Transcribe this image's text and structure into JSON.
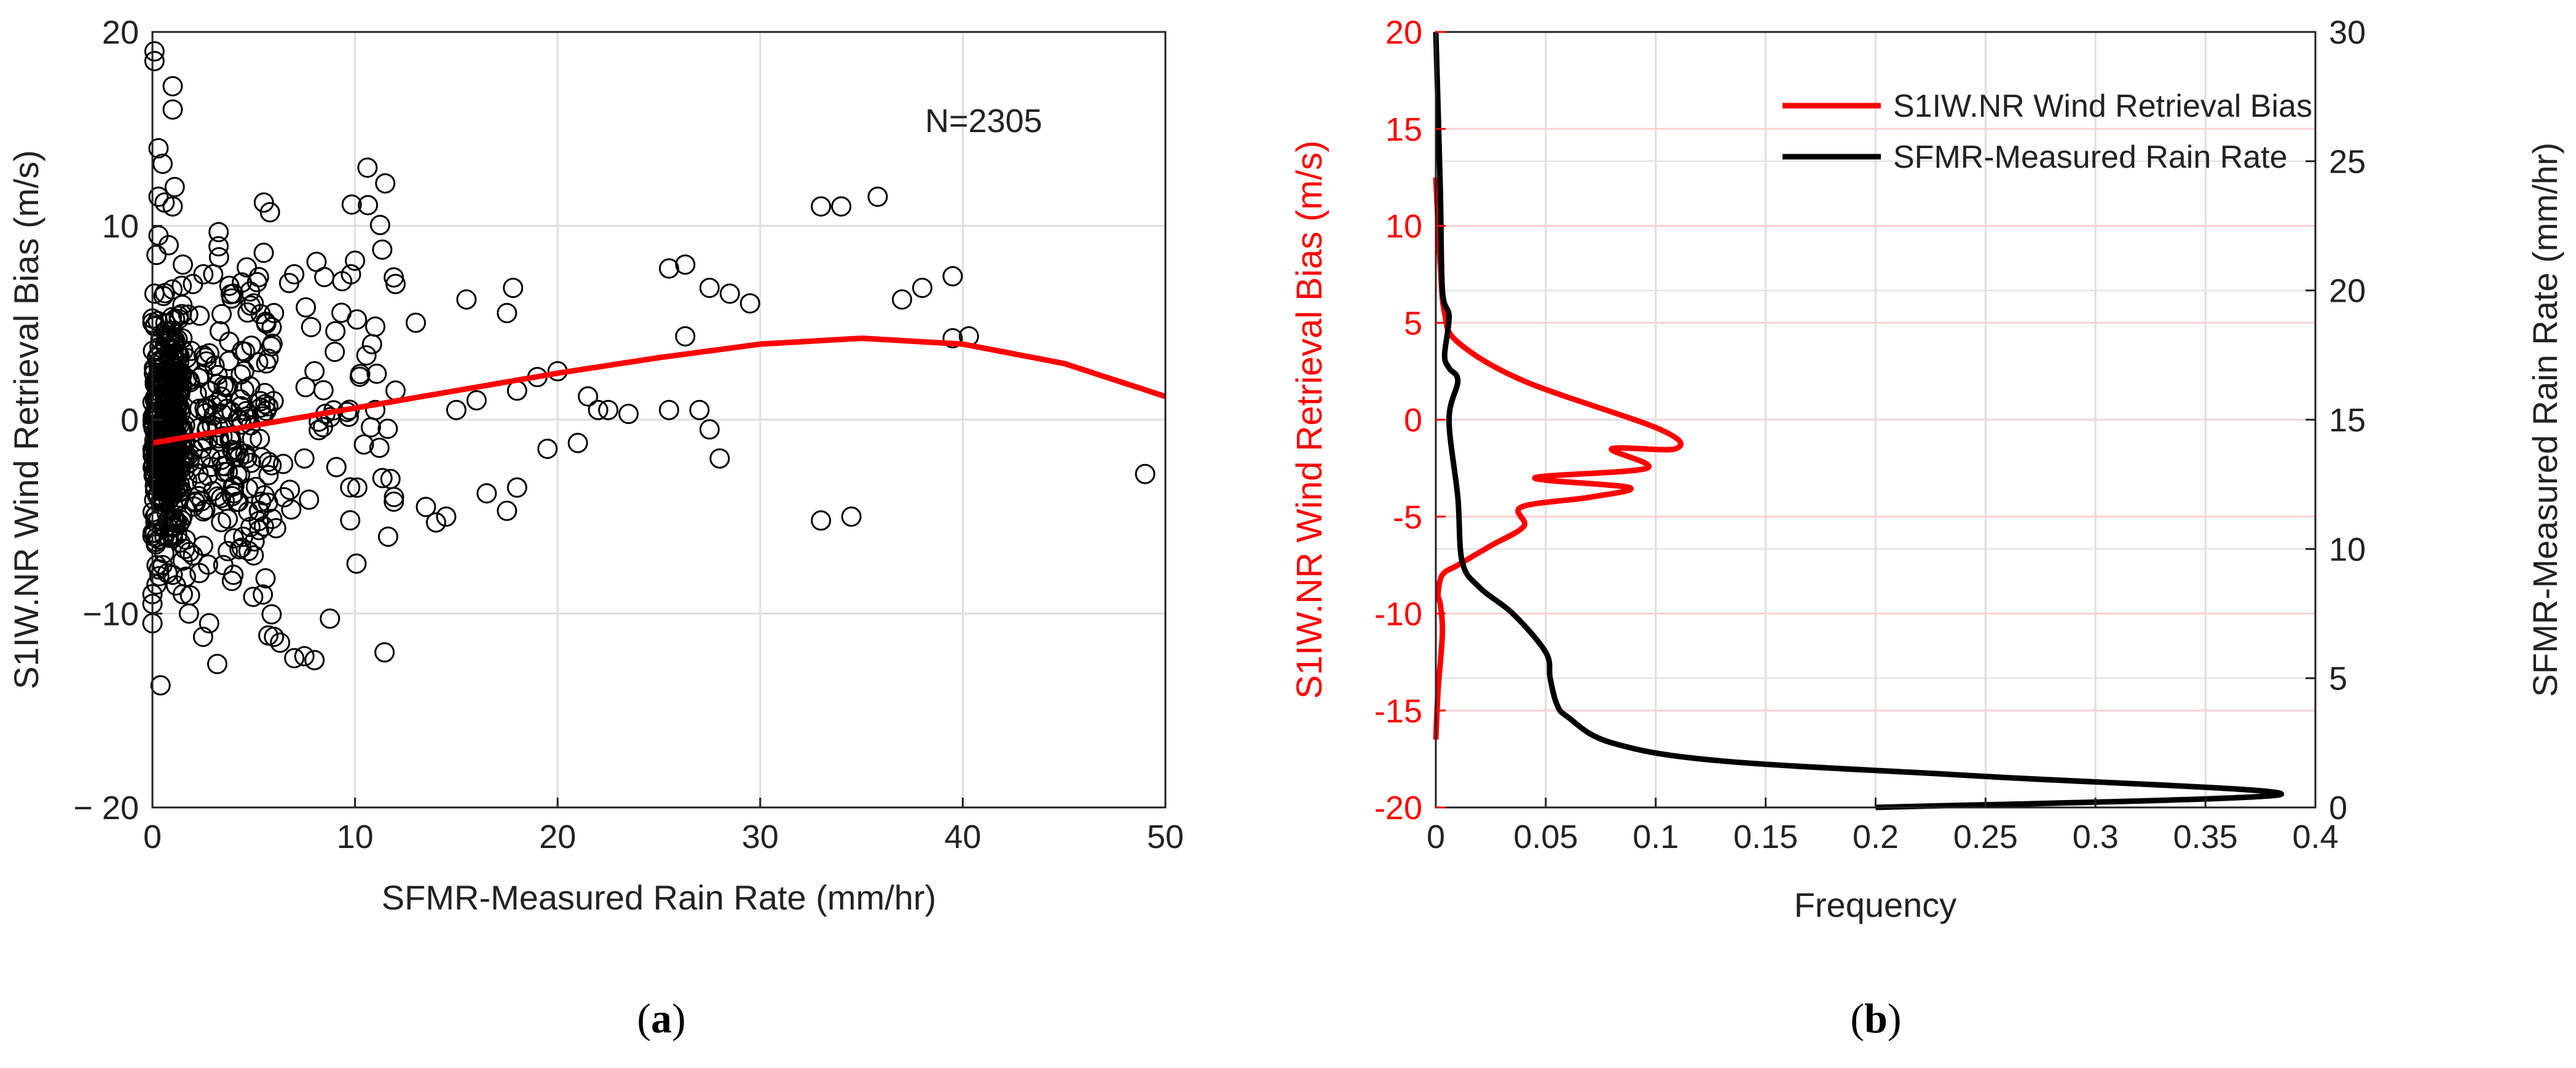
{
  "colors": {
    "red": "#ff0000",
    "black": "#000000",
    "grid": "#dedede",
    "redgrid": "#ffd0d0"
  },
  "panels": {
    "a": {
      "caption_letter": "a",
      "annotation": "N=2305"
    },
    "b": {
      "caption_letter": "b"
    }
  },
  "chart_data": [
    {
      "id": "a",
      "type": "scatter",
      "xlabel": "SFMR-Measured Rain Rate (mm/hr)",
      "ylabel": "S1IW.NR Wind Retrieval Bias (m/s)",
      "xlim": [
        0,
        50
      ],
      "ylim": [
        -20,
        20
      ],
      "xticks": [
        0,
        10,
        20,
        30,
        40,
        50
      ],
      "xtick_labels": [
        "0",
        "10",
        "20",
        "30",
        "40",
        "50"
      ],
      "yticks": [
        -20,
        -10,
        0,
        10,
        20
      ],
      "ytick_labels": [
        "− 20",
        "−10",
        "0",
        "10",
        "20"
      ],
      "grid": true,
      "annotation": "N=2305",
      "point_count": 2305,
      "points_shown": [
        [
          0.1,
          19.0
        ],
        [
          0.1,
          18.5
        ],
        [
          1.0,
          17.2
        ],
        [
          1.0,
          16.0
        ],
        [
          0.3,
          14.0
        ],
        [
          0.5,
          13.2
        ],
        [
          1.1,
          12.0
        ],
        [
          0.3,
          11.5
        ],
        [
          0.6,
          11.2
        ],
        [
          1.0,
          11.0
        ],
        [
          0.4,
          -13.7
        ],
        [
          1.8,
          -10.0
        ],
        [
          2.5,
          -11.2
        ],
        [
          3.2,
          -12.6
        ],
        [
          2.8,
          -10.5
        ],
        [
          6.0,
          -11.2
        ],
        [
          6.3,
          -11.5
        ],
        [
          7.0,
          -12.3
        ],
        [
          7.5,
          -12.2
        ],
        [
          8.0,
          -12.4
        ],
        [
          5.5,
          11.2
        ],
        [
          5.8,
          10.7
        ],
        [
          10.0,
          8.2
        ],
        [
          9.8,
          7.5
        ],
        [
          12.0,
          7.0
        ],
        [
          15.5,
          6.2
        ],
        [
          17.5,
          5.5
        ],
        [
          17.8,
          6.8
        ],
        [
          13.0,
          5.0
        ],
        [
          11.0,
          4.8
        ],
        [
          25.5,
          7.8
        ],
        [
          26.3,
          8.0
        ],
        [
          27.5,
          6.8
        ],
        [
          28.5,
          6.5
        ],
        [
          29.5,
          6.0
        ],
        [
          26.3,
          4.3
        ],
        [
          25.5,
          0.5
        ],
        [
          27.0,
          0.5
        ],
        [
          27.5,
          -0.5
        ],
        [
          28.0,
          -2.0
        ],
        [
          33.0,
          11.0
        ],
        [
          34.0,
          11.0
        ],
        [
          35.8,
          11.5
        ],
        [
          37.0,
          6.2
        ],
        [
          38.0,
          6.8
        ],
        [
          39.5,
          7.4
        ],
        [
          39.5,
          4.2
        ],
        [
          40.3,
          4.3
        ],
        [
          33.0,
          -5.2
        ],
        [
          34.5,
          -5.0
        ],
        [
          49.0,
          -2.8
        ],
        [
          21.0,
          -1.2
        ],
        [
          22.0,
          0.5
        ],
        [
          19.5,
          -1.5
        ],
        [
          18.0,
          -3.5
        ],
        [
          16.5,
          -3.8
        ],
        [
          14.0,
          -5.3
        ],
        [
          14.5,
          -5.0
        ],
        [
          13.5,
          -4.5
        ],
        [
          17.5,
          -4.7
        ],
        [
          20.0,
          2.5
        ],
        [
          21.5,
          1.2
        ],
        [
          19.0,
          2.2
        ],
        [
          22.5,
          0.5
        ],
        [
          23.5,
          0.3
        ],
        [
          18.0,
          1.5
        ],
        [
          16.0,
          1.0
        ],
        [
          15.0,
          0.5
        ],
        [
          12.0,
          1.5
        ],
        [
          11.0,
          0.5
        ],
        [
          9.0,
          3.5
        ],
        [
          8.0,
          2.5
        ],
        [
          7.5,
          -2.0
        ],
        [
          6.5,
          -4.0
        ],
        [
          5.5,
          -5.5
        ],
        [
          5.0,
          -7.0
        ],
        [
          4.0,
          -8.0
        ],
        [
          3.5,
          -7.5
        ],
        [
          2.5,
          -6.5
        ],
        [
          2.0,
          -7.0
        ],
        [
          0.0,
          -9.5
        ],
        [
          0.0,
          -9.0
        ],
        [
          0.0,
          -10.5
        ],
        [
          0.2,
          -8.5
        ],
        [
          1.0,
          -8.0
        ],
        [
          1.5,
          -9.0
        ],
        [
          0.5,
          -7.5
        ],
        [
          0.0,
          -6.0
        ],
        [
          0.0,
          5.0
        ],
        [
          0.1,
          6.5
        ],
        [
          0.2,
          8.5
        ],
        [
          0.3,
          9.5
        ],
        [
          0.8,
          9.0
        ],
        [
          1.5,
          8.0
        ],
        [
          2.0,
          7.0
        ],
        [
          3.0,
          7.5
        ],
        [
          4.0,
          6.5
        ],
        [
          5.0,
          6.0
        ],
        [
          6.0,
          5.5
        ],
        [
          7.0,
          7.5
        ]
      ],
      "fit_curve": {
        "color": "#ff0000",
        "x": [
          0,
          5,
          10,
          15,
          20,
          25,
          30,
          35,
          40,
          45,
          50
        ],
        "y": [
          -1.2,
          -0.3,
          0.6,
          1.5,
          2.4,
          3.2,
          3.9,
          4.2,
          3.9,
          2.9,
          1.2
        ]
      }
    },
    {
      "id": "b",
      "type": "line",
      "xlabel": "Frequency",
      "ylabel_left": "S1IW.NR Wind Retrieval Bias (m/s)",
      "ylabel_right": "SFMR-Measured Rain Rate (mm/hr)",
      "xlim": [
        0,
        0.4
      ],
      "ylim_left": [
        -20,
        20
      ],
      "ylim_right": [
        0,
        30
      ],
      "xticks": [
        0,
        0.05,
        0.1,
        0.15,
        0.2,
        0.25,
        0.3,
        0.35,
        0.4
      ],
      "xtick_labels": [
        "0",
        "0.05",
        "0.1",
        "0.15",
        "0.2",
        "0.25",
        "0.3",
        "0.35",
        "0.4"
      ],
      "yticks_left": [
        -20,
        -15,
        -10,
        -5,
        0,
        5,
        10,
        15,
        20
      ],
      "ytick_labels_left": [
        "-20",
        "-15",
        "-10",
        "-5",
        "0",
        "5",
        "10",
        "15",
        "20"
      ],
      "yticks_right": [
        0,
        5,
        10,
        15,
        20,
        25,
        30
      ],
      "ytick_labels_right": [
        "0",
        "5",
        "10",
        "15",
        "20",
        "25",
        "30"
      ],
      "grid": true,
      "legend_position": "top-right",
      "series": [
        {
          "name": "S1IW.NR Wind Retrieval Bias",
          "color": "#ff0000",
          "axis": "left",
          "freq": [
            0.0,
            0.001,
            0.003,
            0.002,
            0.001,
            0.003,
            0.01,
            0.025,
            0.04,
            0.039,
            0.045,
            0.08,
            0.102,
            0.109,
            0.096,
            0.088,
            0.07,
            0.04,
            0.01,
            0.004,
            0.002,
            0.0
          ],
          "value": [
            -16.5,
            -14.0,
            -11.0,
            -9.5,
            -9.0,
            -8.0,
            -7.5,
            -6.5,
            -5.5,
            -4.5,
            -3.0,
            -1.5,
            -0.5,
            -1.5,
            -2.5,
            -3.5,
            -4.0,
            2.0,
            4.0,
            5.5,
            8.0,
            12.5
          ]
        },
        {
          "name": "SFMR-Measured Rain Rate",
          "color": "#000000",
          "axis": "right",
          "freq": [
            0.0,
            0.002,
            0.003,
            0.006,
            0.004,
            0.006,
            0.01,
            0.006,
            0.01,
            0.012,
            0.02,
            0.035,
            0.05,
            0.052,
            0.055,
            0.06,
            0.08,
            0.13,
            0.25,
            0.384,
            0.2
          ],
          "value": [
            30.0,
            24.0,
            20.0,
            19.0,
            17.5,
            17.0,
            16.5,
            15.0,
            12.0,
            9.5,
            8.5,
            7.5,
            6.0,
            5.0,
            4.0,
            3.5,
            2.5,
            1.8,
            1.2,
            0.5,
            0.0
          ]
        }
      ]
    }
  ]
}
